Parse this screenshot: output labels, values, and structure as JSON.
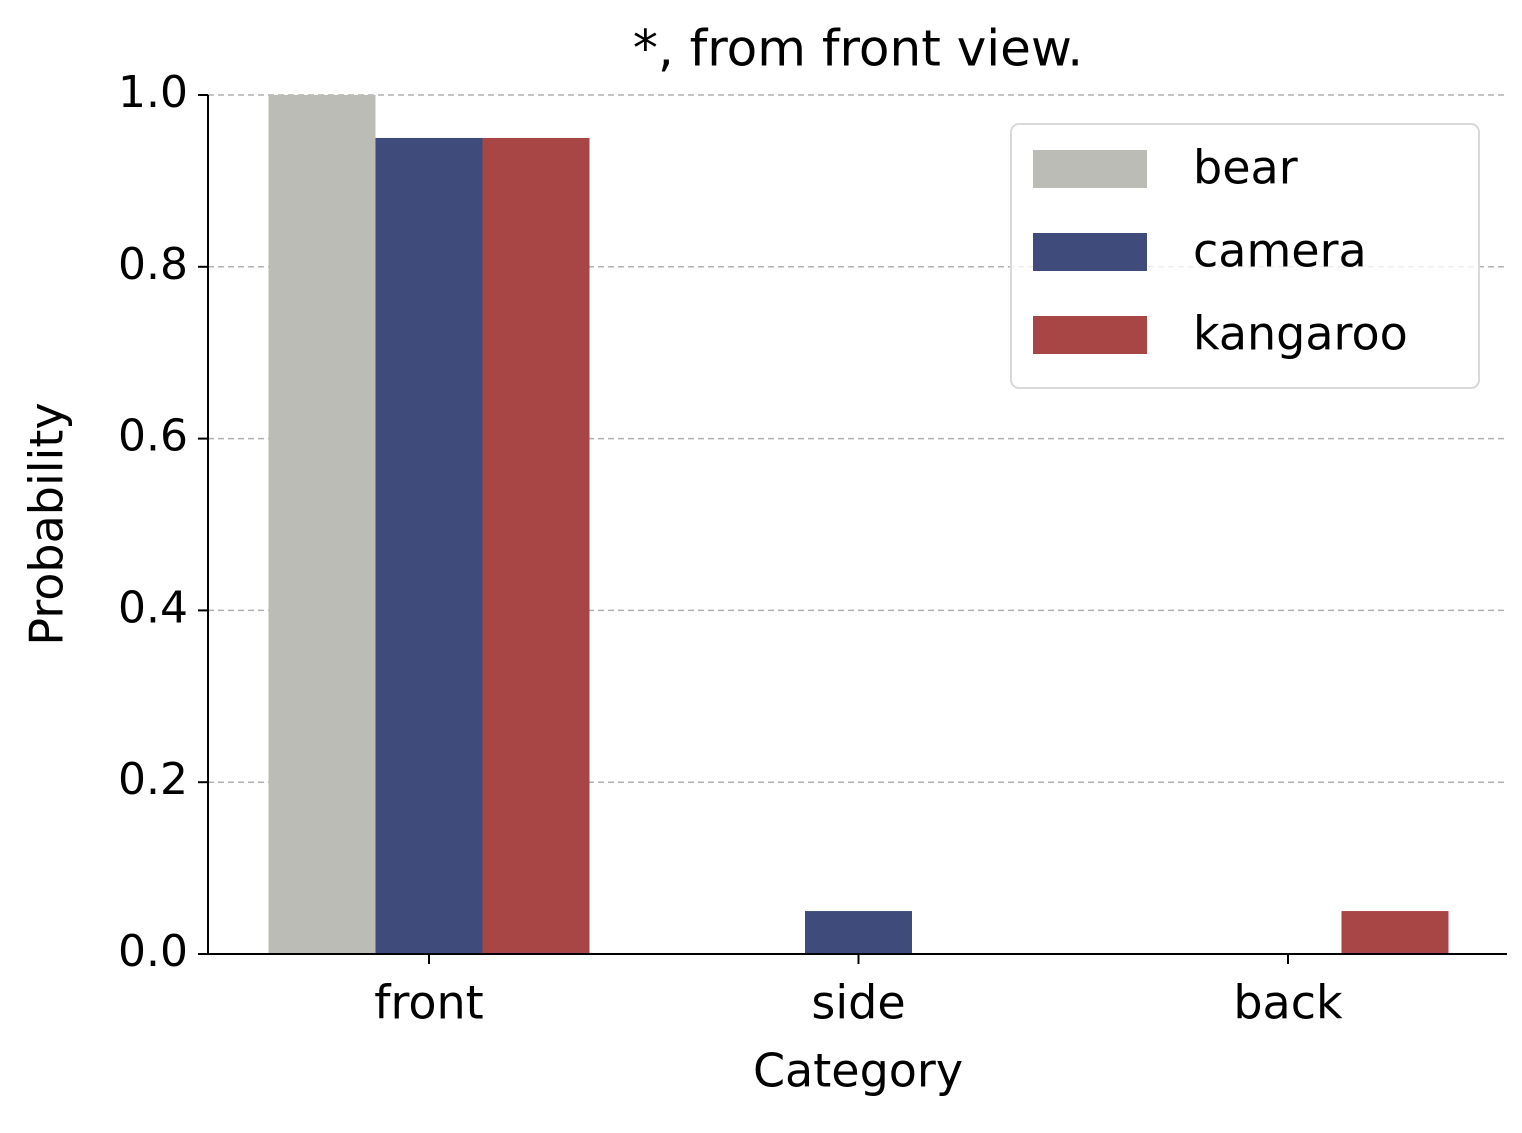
{
  "chart_data": {
    "type": "bar",
    "title": "*, from front view.",
    "x_label": "Category",
    "y_label": "Probability",
    "categories": [
      "front",
      "side",
      "back"
    ],
    "series": [
      {
        "name": "bear",
        "color": "#bcbcb6",
        "values": [
          1.0,
          0,
          0
        ]
      },
      {
        "name": "camera",
        "color": "#3f4b7a",
        "values": [
          0.95,
          0.05,
          0
        ]
      },
      {
        "name": "kangaroo",
        "color": "#a84545",
        "values": [
          0.95,
          0,
          0.05
        ]
      }
    ],
    "ylim": [
      0,
      1.0
    ],
    "yticks": [
      {
        "value": 0,
        "label": "0.0"
      },
      0.2,
      0.4,
      0.6,
      0.8,
      {
        "value": 1.0,
        "label": "1.0"
      }
    ],
    "grid": true,
    "legend": "upper right"
  }
}
